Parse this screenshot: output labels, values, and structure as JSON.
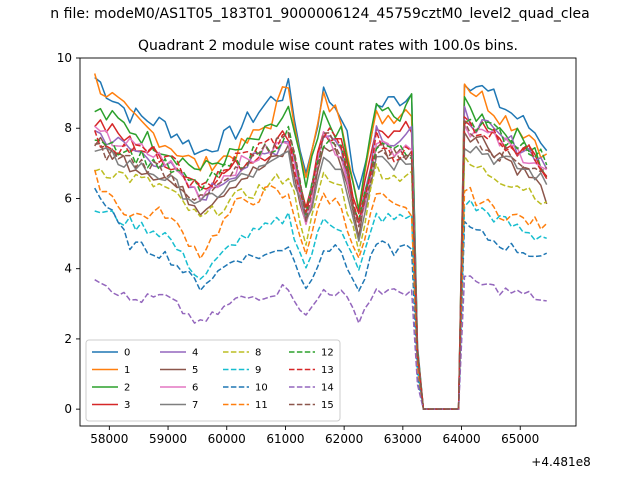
{
  "figure": {
    "suptitle": "n file: modeM0/AS1T05_183T01_9000006124_45759cztM0_level2_quad_clea",
    "offset_label": "+4.481e8"
  },
  "chart_data": {
    "type": "line",
    "title": "Quadrant 2 module wise count rates with 100.0s bins.",
    "xlabel": "",
    "ylabel": "",
    "xlim": [
      57500,
      65950
    ],
    "ylim": [
      -0.48,
      10.0
    ],
    "xticks": [
      58000,
      59000,
      60000,
      61000,
      62000,
      63000,
      64000,
      65000
    ],
    "xtick_labels": [
      "58000",
      "59000",
      "60000",
      "61000",
      "62000",
      "63000",
      "64000",
      "65000"
    ],
    "yticks": [
      0,
      2,
      4,
      6,
      8,
      10
    ],
    "ytick_labels": [
      "0",
      "2",
      "4",
      "6",
      "8",
      "10"
    ],
    "grid": false,
    "legend_position": "lower-left",
    "legend_columns": 4,
    "gaps": [
      [
        63200,
        63300
      ]
    ],
    "x": [
      57750,
      58350,
      58950,
      59550,
      60150,
      60750,
      61050,
      61350,
      61650,
      61950,
      62250,
      62550,
      62850,
      63150,
      63250,
      63350,
      63950,
      64050,
      64650,
      65250,
      65500
    ],
    "series": [
      {
        "name": "0",
        "color": "#1f77b4",
        "dash": false,
        "values": [
          9.45,
          8.4,
          8.1,
          7.3,
          7.9,
          8.8,
          9.1,
          6.7,
          9.0,
          8.5,
          6.1,
          8.6,
          8.8,
          9.0,
          1.8,
          0,
          0,
          9.5,
          8.7,
          7.9,
          7.4
        ]
      },
      {
        "name": "1",
        "color": "#ff7f0e",
        "dash": false,
        "values": [
          9.4,
          8.3,
          7.6,
          6.9,
          7.3,
          8.2,
          9.3,
          6.5,
          8.8,
          8.3,
          5.9,
          8.3,
          8.4,
          8.6,
          1.7,
          0,
          0,
          9.35,
          8.4,
          7.7,
          7.0
        ]
      },
      {
        "name": "2",
        "color": "#2ca02c",
        "dash": false,
        "values": [
          8.5,
          8.0,
          7.4,
          6.8,
          7.3,
          7.9,
          8.5,
          6.3,
          8.3,
          7.8,
          5.7,
          8.7,
          8.2,
          9.0,
          1.7,
          0,
          0,
          8.6,
          8.0,
          7.5,
          6.3
        ]
      },
      {
        "name": "3",
        "color": "#d62728",
        "dash": false,
        "values": [
          8.2,
          7.6,
          7.1,
          6.4,
          6.9,
          7.4,
          7.9,
          5.8,
          7.9,
          7.5,
          5.4,
          8.2,
          7.8,
          8.0,
          1.6,
          0,
          0,
          8.3,
          7.6,
          7.2,
          6.5
        ]
      },
      {
        "name": "4",
        "color": "#9467bd",
        "dash": false,
        "values": [
          7.9,
          7.4,
          7.0,
          6.0,
          6.8,
          7.3,
          7.8,
          5.6,
          7.9,
          7.4,
          5.3,
          8.0,
          7.6,
          7.8,
          1.6,
          0,
          0,
          8.4,
          7.7,
          7.3,
          6.8
        ]
      },
      {
        "name": "5",
        "color": "#8c564b",
        "dash": false,
        "values": [
          7.6,
          7.0,
          6.6,
          5.7,
          6.5,
          7.0,
          7.4,
          5.2,
          7.5,
          7.1,
          5.0,
          7.6,
          7.2,
          7.4,
          1.5,
          0,
          0,
          8.0,
          7.3,
          6.5,
          5.9
        ]
      },
      {
        "name": "6",
        "color": "#e377c2",
        "dash": false,
        "values": [
          7.8,
          7.5,
          7.1,
          6.1,
          6.9,
          7.4,
          7.6,
          5.4,
          7.7,
          7.4,
          5.1,
          7.7,
          7.4,
          7.6,
          1.6,
          0,
          0,
          8.1,
          7.6,
          7.1,
          6.6
        ]
      },
      {
        "name": "7",
        "color": "#7f7f7f",
        "dash": false,
        "values": [
          7.3,
          7.0,
          6.6,
          5.8,
          6.5,
          6.9,
          7.3,
          5.2,
          7.2,
          6.9,
          4.9,
          7.3,
          7.0,
          7.2,
          1.5,
          0,
          0,
          7.6,
          7.1,
          6.7,
          6.3
        ]
      },
      {
        "name": "8",
        "color": "#bcbd22",
        "dash": true,
        "values": [
          6.9,
          6.6,
          6.3,
          5.4,
          6.0,
          6.4,
          6.7,
          4.8,
          6.6,
          6.3,
          4.6,
          6.9,
          6.6,
          6.8,
          1.4,
          0,
          0,
          7.0,
          6.6,
          6.2,
          5.6
        ]
      },
      {
        "name": "9",
        "color": "#17becf",
        "dash": true,
        "values": [
          5.7,
          5.3,
          5.0,
          3.7,
          4.8,
          5.2,
          5.5,
          4.0,
          5.4,
          5.2,
          3.9,
          5.5,
          5.4,
          5.5,
          1.1,
          0,
          0,
          5.9,
          5.4,
          4.9,
          5.0
        ]
      },
      {
        "name": "10",
        "color": "#1f77b4",
        "dash": true,
        "values": [
          6.3,
          4.7,
          4.4,
          3.5,
          4.3,
          4.4,
          4.7,
          3.4,
          4.6,
          4.5,
          3.3,
          4.7,
          4.5,
          4.7,
          0.9,
          0,
          0,
          5.2,
          4.7,
          4.4,
          4.3
        ]
      },
      {
        "name": "11",
        "color": "#ff7f0e",
        "dash": true,
        "values": [
          6.6,
          5.5,
          5.6,
          4.4,
          5.8,
          6.2,
          6.0,
          4.5,
          6.1,
          5.8,
          4.2,
          6.1,
          5.7,
          5.6,
          1.2,
          0,
          0,
          6.2,
          5.6,
          5.3,
          5.1
        ]
      },
      {
        "name": "12",
        "color": "#2ca02c",
        "dash": true,
        "values": [
          7.9,
          7.3,
          6.9,
          6.3,
          7.0,
          7.5,
          7.9,
          5.6,
          7.6,
          7.3,
          5.3,
          7.6,
          7.4,
          7.2,
          1.6,
          0,
          0,
          8.4,
          7.8,
          7.4,
          7.0
        ]
      },
      {
        "name": "13",
        "color": "#d62728",
        "dash": true,
        "values": [
          7.7,
          7.4,
          7.2,
          6.2,
          7.1,
          7.6,
          7.7,
          5.5,
          7.9,
          7.5,
          5.2,
          7.7,
          7.3,
          7.3,
          1.6,
          0,
          0,
          8.2,
          7.7,
          7.2,
          6.7
        ]
      },
      {
        "name": "14",
        "color": "#9467bd",
        "dash": true,
        "values": [
          3.8,
          3.1,
          3.2,
          2.4,
          3.1,
          3.3,
          3.5,
          2.6,
          3.4,
          3.3,
          2.6,
          3.4,
          3.3,
          3.4,
          0.7,
          0,
          0,
          3.7,
          3.4,
          3.2,
          3.0
        ]
      },
      {
        "name": "15",
        "color": "#8c564b",
        "dash": true,
        "values": [
          7.4,
          7.1,
          6.8,
          5.9,
          6.7,
          7.4,
          8.1,
          5.5,
          7.8,
          7.4,
          5.1,
          7.4,
          7.2,
          7.4,
          1.5,
          0,
          0,
          8.0,
          7.3,
          6.9,
          6.8
        ]
      }
    ]
  }
}
